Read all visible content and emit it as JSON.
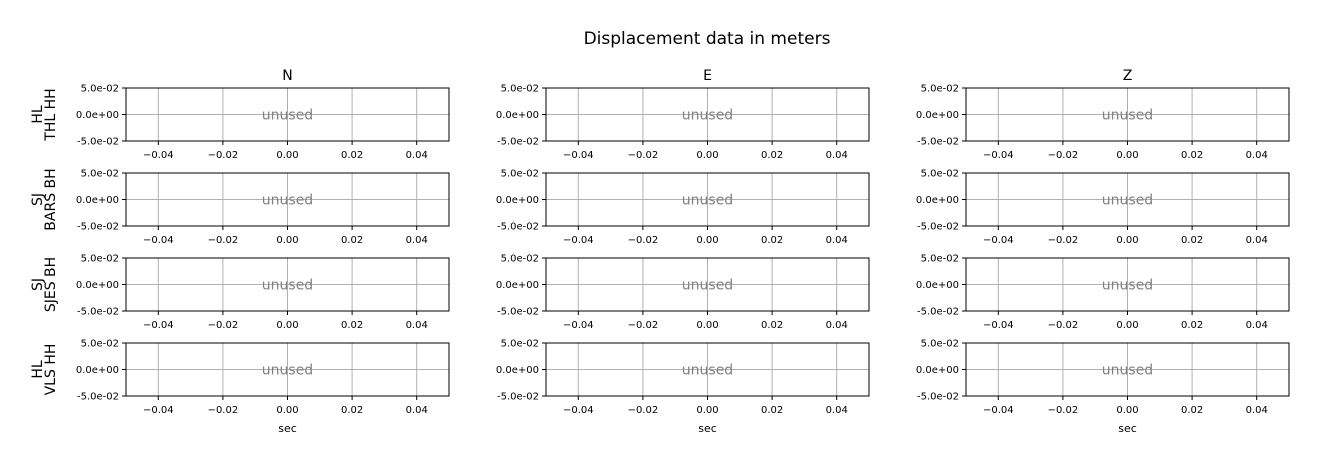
{
  "figure": {
    "title": "Displacement data in meters",
    "columns": [
      "N",
      "E",
      "Z"
    ],
    "rows": [
      [
        "HL",
        "THL HH"
      ],
      [
        "SJ",
        "BARS BH"
      ],
      [
        "SJ",
        "SJES BH"
      ],
      [
        "HL",
        "VLS HH"
      ]
    ],
    "xlabel": "sec",
    "placeholder_text": "unused"
  },
  "chart_data": {
    "type": "line",
    "title": "Displacement data in meters",
    "xlabel": "sec",
    "ylabel": "",
    "xlim": [
      -0.05,
      0.05
    ],
    "ylim": [
      -0.05,
      0.05
    ],
    "xticks": [
      -0.04,
      -0.02,
      0.0,
      0.02,
      0.04
    ],
    "xtick_labels": [
      "−0.04",
      "−0.02",
      "0.00",
      "0.02",
      "0.04"
    ],
    "yticks": [
      -0.05,
      0.0,
      0.05
    ],
    "ytick_labels": [
      "-5.0e-02",
      "0.0e+00",
      "5.0e-02"
    ],
    "grid": true,
    "series": []
  },
  "colors": {
    "axis": "#000000",
    "grid": "#b0b0b0",
    "placeholder_text": "#808080",
    "background": "#ffffff"
  }
}
